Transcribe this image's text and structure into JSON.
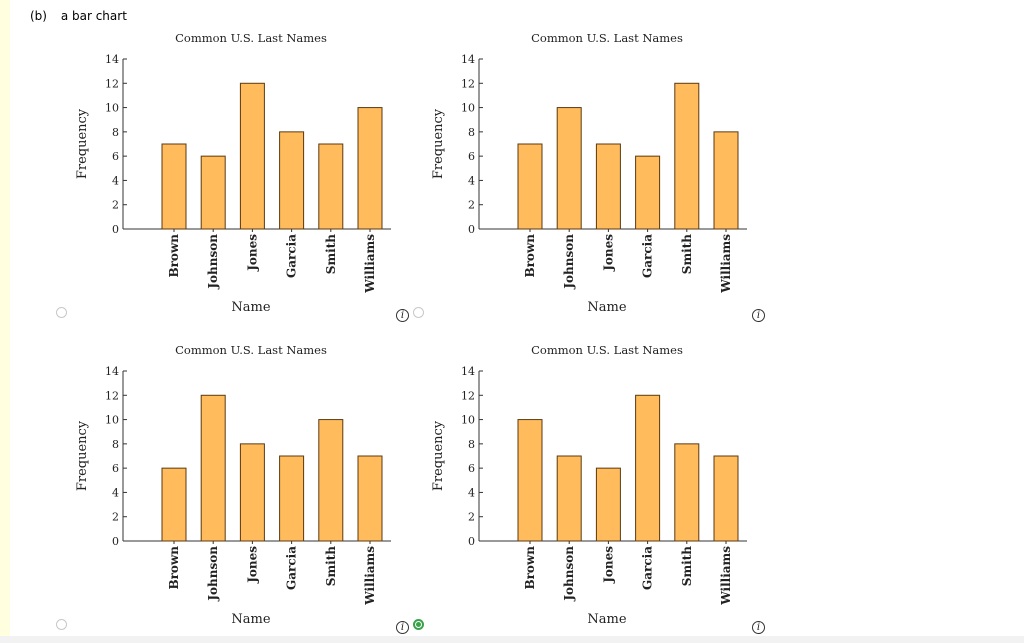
{
  "header": {
    "part": "(b)",
    "prompt": "a bar chart"
  },
  "colors": {
    "bar": "#ffbb5c",
    "bar_stroke": "#5a3a10",
    "axis": "#333333",
    "selected": "#3aa34a"
  },
  "icons": {
    "info": "info-icon",
    "radio": "radio-button"
  },
  "info_glyph": "i",
  "options": [
    {
      "id": "A",
      "selected": false
    },
    {
      "id": "B",
      "selected": false
    },
    {
      "id": "C",
      "selected": false
    },
    {
      "id": "D",
      "selected": true
    }
  ],
  "chart_data": [
    {
      "type": "bar",
      "title": "Common U.S. Last Names",
      "xlabel": "Name",
      "ylabel": "Frequency",
      "categories": [
        "Brown",
        "Johnson",
        "Jones",
        "Garcia",
        "Smith",
        "Williams"
      ],
      "values": [
        7,
        6,
        12,
        8,
        7,
        10
      ],
      "ylim": [
        0,
        14
      ],
      "yticks": [
        0,
        2,
        4,
        6,
        8,
        10,
        12,
        14
      ]
    },
    {
      "type": "bar",
      "title": "Common U.S. Last Names",
      "xlabel": "Name",
      "ylabel": "Frequency",
      "categories": [
        "Brown",
        "Johnson",
        "Jones",
        "Garcia",
        "Smith",
        "Williams"
      ],
      "values": [
        7,
        10,
        7,
        6,
        12,
        8
      ],
      "ylim": [
        0,
        14
      ],
      "yticks": [
        0,
        2,
        4,
        6,
        8,
        10,
        12,
        14
      ]
    },
    {
      "type": "bar",
      "title": "Common U.S. Last Names",
      "xlabel": "Name",
      "ylabel": "Frequency",
      "categories": [
        "Brown",
        "Johnson",
        "Jones",
        "Garcia",
        "Smith",
        "Williams"
      ],
      "values": [
        6,
        12,
        8,
        7,
        10,
        7
      ],
      "ylim": [
        0,
        14
      ],
      "yticks": [
        0,
        2,
        4,
        6,
        8,
        10,
        12,
        14
      ]
    },
    {
      "type": "bar",
      "title": "Common U.S. Last Names",
      "xlabel": "Name",
      "ylabel": "Frequency",
      "categories": [
        "Brown",
        "Johnson",
        "Jones",
        "Garcia",
        "Smith",
        "Williams"
      ],
      "values": [
        10,
        7,
        6,
        12,
        8,
        7
      ],
      "ylim": [
        0,
        14
      ],
      "yticks": [
        0,
        2,
        4,
        6,
        8,
        10,
        12,
        14
      ]
    }
  ]
}
